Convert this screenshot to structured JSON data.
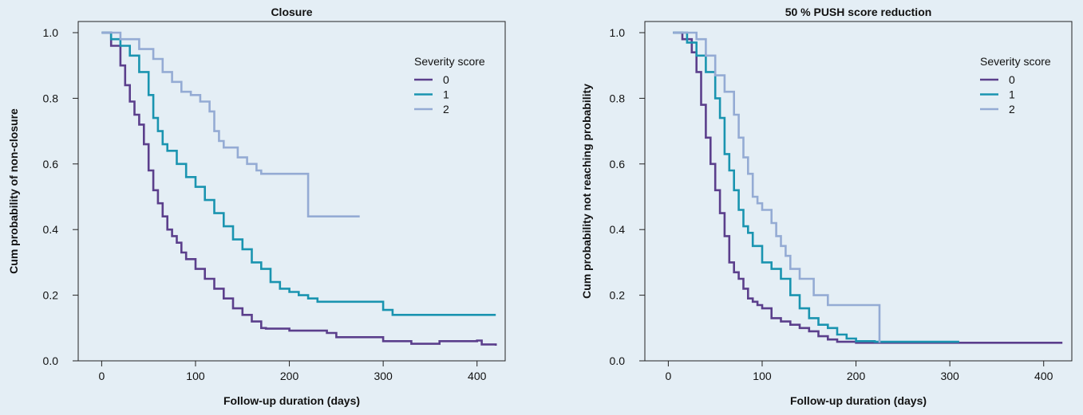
{
  "chart_data": [
    {
      "type": "line",
      "step": true,
      "title": "Closure",
      "xlabel": "Follow-up duration (days)",
      "ylabel": "Cum probability of non-closure",
      "xlim": [
        -25,
        430
      ],
      "ylim": [
        0,
        1.0
      ],
      "xticks": [
        0,
        100,
        200,
        300,
        400
      ],
      "yticks": [
        0.0,
        0.2,
        0.4,
        0.6,
        0.8,
        1.0
      ],
      "ytick_labels": [
        "0.0",
        "0.2",
        "0.4",
        "0.6",
        "0.8",
        "1.0"
      ],
      "legend_title": "Severity score",
      "legend_position": "top-right",
      "series": [
        {
          "name": "0",
          "color": "#5b3f8c",
          "x": [
            0,
            10,
            20,
            25,
            30,
            35,
            40,
            45,
            50,
            55,
            60,
            65,
            70,
            75,
            80,
            85,
            90,
            100,
            110,
            120,
            130,
            140,
            150,
            160,
            170,
            175,
            200,
            240,
            250,
            300,
            330,
            360,
            400,
            405,
            420
          ],
          "y": [
            1.0,
            0.96,
            0.9,
            0.84,
            0.79,
            0.75,
            0.72,
            0.66,
            0.58,
            0.52,
            0.48,
            0.44,
            0.4,
            0.38,
            0.36,
            0.33,
            0.31,
            0.28,
            0.25,
            0.22,
            0.19,
            0.16,
            0.14,
            0.12,
            0.1,
            0.098,
            0.092,
            0.085,
            0.072,
            0.06,
            0.052,
            0.06,
            0.062,
            0.05,
            0.046
          ]
        },
        {
          "name": "1",
          "color": "#1a94b0",
          "x": [
            0,
            10,
            20,
            30,
            40,
            50,
            55,
            60,
            65,
            70,
            80,
            90,
            100,
            110,
            120,
            130,
            140,
            150,
            160,
            170,
            180,
            190,
            200,
            210,
            220,
            230,
            260,
            300,
            310,
            420
          ],
          "y": [
            1.0,
            0.98,
            0.96,
            0.93,
            0.88,
            0.81,
            0.74,
            0.7,
            0.66,
            0.64,
            0.6,
            0.56,
            0.53,
            0.49,
            0.45,
            0.41,
            0.37,
            0.34,
            0.3,
            0.28,
            0.24,
            0.22,
            0.21,
            0.2,
            0.19,
            0.18,
            0.18,
            0.155,
            0.14,
            0.14
          ]
        },
        {
          "name": "2",
          "color": "#94abd4",
          "x": [
            0,
            20,
            40,
            55,
            65,
            75,
            85,
            95,
            105,
            115,
            120,
            125,
            130,
            145,
            155,
            165,
            170,
            220,
            275
          ],
          "y": [
            1.0,
            0.98,
            0.95,
            0.92,
            0.88,
            0.85,
            0.82,
            0.81,
            0.79,
            0.76,
            0.7,
            0.67,
            0.65,
            0.62,
            0.6,
            0.58,
            0.57,
            0.44,
            0.44
          ]
        }
      ]
    },
    {
      "type": "line",
      "step": true,
      "title": "50 % PUSH score reduction",
      "xlabel": "Follow-up duration (days)",
      "ylabel": "Cum probability not reaching probability",
      "xlim": [
        -25,
        430
      ],
      "ylim": [
        0,
        1.0
      ],
      "xticks": [
        0,
        100,
        200,
        300,
        400
      ],
      "yticks": [
        0.0,
        0.2,
        0.4,
        0.6,
        0.8,
        1.0
      ],
      "ytick_labels": [
        "0.0",
        "0.2",
        "0.4",
        "0.6",
        "0.8",
        "1.0"
      ],
      "legend_title": "Severity score",
      "legend_position": "top-right",
      "series": [
        {
          "name": "0",
          "color": "#5b3f8c",
          "x": [
            5,
            15,
            25,
            30,
            35,
            40,
            45,
            50,
            55,
            60,
            65,
            70,
            75,
            80,
            85,
            90,
            95,
            100,
            110,
            120,
            130,
            140,
            150,
            160,
            170,
            180,
            200,
            420
          ],
          "y": [
            1.0,
            0.98,
            0.94,
            0.88,
            0.78,
            0.68,
            0.6,
            0.52,
            0.45,
            0.38,
            0.3,
            0.27,
            0.25,
            0.22,
            0.19,
            0.18,
            0.17,
            0.16,
            0.13,
            0.12,
            0.11,
            0.1,
            0.09,
            0.075,
            0.065,
            0.058,
            0.055,
            0.055
          ]
        },
        {
          "name": "1",
          "color": "#1a94b0",
          "x": [
            5,
            20,
            30,
            40,
            50,
            55,
            60,
            65,
            70,
            75,
            80,
            85,
            90,
            100,
            110,
            120,
            130,
            140,
            150,
            160,
            170,
            180,
            190,
            200,
            220,
            310
          ],
          "y": [
            1.0,
            0.97,
            0.93,
            0.88,
            0.8,
            0.74,
            0.63,
            0.58,
            0.52,
            0.46,
            0.41,
            0.39,
            0.35,
            0.3,
            0.28,
            0.25,
            0.2,
            0.16,
            0.13,
            0.11,
            0.1,
            0.08,
            0.068,
            0.06,
            0.058,
            0.058
          ]
        },
        {
          "name": "2",
          "color": "#94abd4",
          "x": [
            5,
            30,
            40,
            50,
            60,
            70,
            75,
            80,
            85,
            90,
            95,
            100,
            110,
            115,
            120,
            125,
            130,
            140,
            155,
            170,
            225,
            225
          ],
          "y": [
            1.0,
            0.98,
            0.93,
            0.87,
            0.82,
            0.75,
            0.68,
            0.62,
            0.57,
            0.5,
            0.48,
            0.46,
            0.42,
            0.38,
            0.35,
            0.32,
            0.28,
            0.25,
            0.2,
            0.17,
            0.17,
            0.055
          ]
        }
      ]
    }
  ]
}
